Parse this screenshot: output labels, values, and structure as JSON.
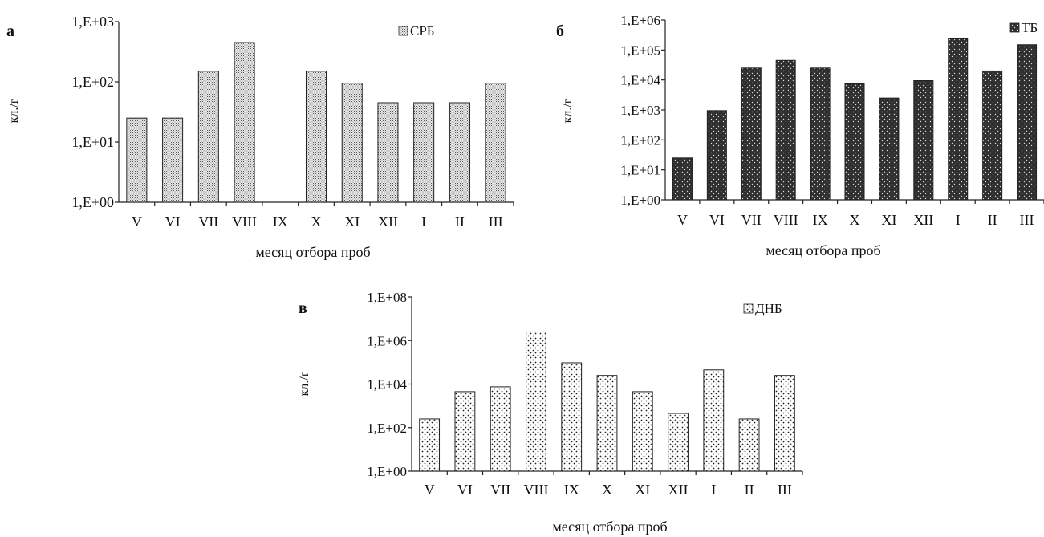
{
  "chart_data": [
    {
      "type": "bar",
      "panel_label": "а",
      "scale": "log10",
      "ylim": [
        1,
        1000
      ],
      "yticks": [
        "1,E+00",
        "1,E+01",
        "1,E+02",
        "1,E+03"
      ],
      "ylabel": "кл./г",
      "xlabel": "месяц отбора проб",
      "categories": [
        "V",
        "VI",
        "VII",
        "VIII",
        "IX",
        "X",
        "XI",
        "XII",
        "I",
        "II",
        "III"
      ],
      "series": [
        {
          "name": "СРБ",
          "values": [
            25,
            25,
            150,
            450,
            null,
            150,
            95,
            45,
            45,
            45,
            95
          ]
        }
      ],
      "legend_position": "top-right",
      "fill_color": "#d2d2d2"
    },
    {
      "type": "bar",
      "panel_label": "б",
      "scale": "log10",
      "ylim": [
        1,
        1000000
      ],
      "yticks": [
        "1,E+00",
        "1,E+01",
        "1,E+02",
        "1,E+03",
        "1,E+04",
        "1,E+05",
        "1,E+06"
      ],
      "ylabel": "кл./г",
      "xlabel": "месяц отбора проб",
      "categories": [
        "V",
        "VI",
        "VII",
        "VIII",
        "IX",
        "X",
        "XI",
        "XII",
        "I",
        "II",
        "III"
      ],
      "series": [
        {
          "name": "ТБ",
          "values": [
            25,
            950,
            25000,
            45000,
            25000,
            7500,
            2500,
            9500,
            250000,
            20000,
            150000
          ]
        }
      ],
      "legend_position": "top-right",
      "fill_color": "#2e2e2e"
    },
    {
      "type": "bar",
      "panel_label": "в",
      "scale": "log10",
      "ylim": [
        1,
        100000000
      ],
      "yticks": [
        "1,E+00",
        "1,E+02",
        "1,E+04",
        "1,E+06",
        "1,E+08"
      ],
      "ylabel": "кл./г",
      "xlabel": "месяц отбора проб",
      "categories": [
        "V",
        "VI",
        "VII",
        "VIII",
        "IX",
        "X",
        "XI",
        "XII",
        "I",
        "II",
        "III"
      ],
      "series": [
        {
          "name": "ДНБ",
          "values": [
            250,
            4500,
            7500,
            2500000,
            95000,
            25000,
            4500,
            450,
            45000,
            250,
            25000
          ]
        }
      ],
      "legend_position": "top-right",
      "fill_color": "#e9e9e9"
    }
  ]
}
